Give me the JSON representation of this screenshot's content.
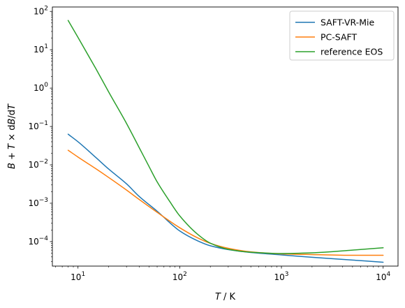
{
  "chart_data": {
    "type": "line",
    "title": "",
    "xlabel": "T / K",
    "ylabel": "B + T × dB/dT",
    "xscale": "log",
    "yscale": "log",
    "xlim": [
      5.6,
      14000
    ],
    "ylim": [
      2.3e-05,
      130
    ],
    "xticks": [
      {
        "value": 10,
        "base": "10",
        "exp": "1"
      },
      {
        "value": 100,
        "base": "10",
        "exp": "2"
      },
      {
        "value": 1000,
        "base": "10",
        "exp": "3"
      },
      {
        "value": 10000,
        "base": "10",
        "exp": "4"
      }
    ],
    "yticks": [
      {
        "value": 0.0001,
        "base": "10",
        "exp": "−4"
      },
      {
        "value": 0.001,
        "base": "10",
        "exp": "−3"
      },
      {
        "value": 0.01,
        "base": "10",
        "exp": "−2"
      },
      {
        "value": 0.1,
        "base": "10",
        "exp": "−1"
      },
      {
        "value": 1,
        "base": "10",
        "exp": "0"
      },
      {
        "value": 10,
        "base": "10",
        "exp": "1"
      },
      {
        "value": 100,
        "base": "10",
        "exp": "2"
      }
    ],
    "legend_position": "top-right",
    "grid": false,
    "series": [
      {
        "name": "SAFT-VR-Mie",
        "color": "#1f77b4",
        "x": [
          8,
          10,
          15,
          20,
          30,
          40,
          60,
          100,
          150,
          200,
          300,
          500,
          1000,
          2000,
          5000,
          10000
        ],
        "y": [
          0.063,
          0.04,
          0.0155,
          0.0078,
          0.0032,
          0.0015,
          0.00062,
          0.00019,
          0.000105,
          7.8e-05,
          6.2e-05,
          5.2e-05,
          4.5e-05,
          3.9e-05,
          3.3e-05,
          2.9e-05
        ]
      },
      {
        "name": "PC-SAFT",
        "color": "#ff7f0e",
        "x": [
          8,
          10,
          15,
          20,
          30,
          40,
          60,
          100,
          150,
          200,
          300,
          500,
          1000,
          2000,
          5000,
          10000
        ],
        "y": [
          0.024,
          0.016,
          0.0079,
          0.0047,
          0.0022,
          0.00125,
          0.00058,
          0.00023,
          0.000125,
          9e-05,
          6.7e-05,
          5.4e-05,
          4.8e-05,
          4.6e-05,
          4.4e-05,
          4.4e-05
        ]
      },
      {
        "name": "reference EOS",
        "color": "#2ca02c",
        "x": [
          8,
          10,
          15,
          20,
          30,
          40,
          50,
          60,
          80,
          100,
          150,
          200,
          300,
          500,
          1000,
          2000,
          5000,
          10000
        ],
        "y": [
          58,
          21,
          3.2,
          0.8,
          0.12,
          0.028,
          0.009,
          0.0036,
          0.0011,
          0.00047,
          0.000155,
          9.1e-05,
          6.3e-05,
          5.3e-05,
          4.9e-05,
          5.1e-05,
          6e-05,
          6.9e-05
        ]
      }
    ]
  }
}
